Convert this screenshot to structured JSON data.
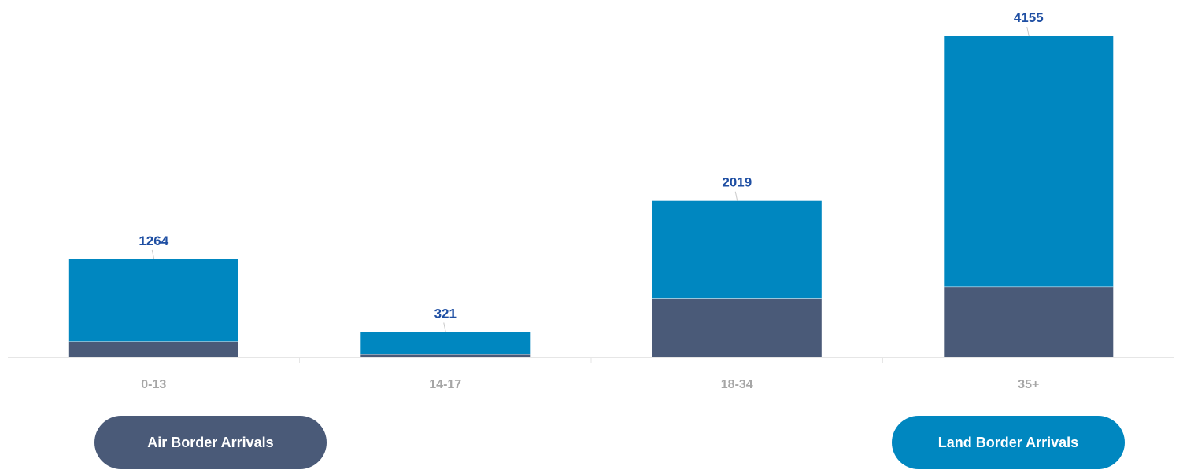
{
  "chart_data": {
    "type": "bar",
    "stacked": true,
    "title": "",
    "xlabel": "",
    "ylabel": "",
    "ylim": [
      0,
      4500
    ],
    "grid": false,
    "categories": [
      "0-13",
      "14-17",
      "18-34",
      "35+"
    ],
    "totals": [
      1264,
      321,
      2019,
      4155
    ],
    "series": [
      {
        "name": "Air Border Arrivals",
        "values": [
          200,
          30,
          760,
          910
        ],
        "color": "#4a5a78"
      },
      {
        "name": "Land Border Arrivals",
        "values": [
          1064,
          291,
          1259,
          3245
        ],
        "color": "#0087c0"
      }
    ],
    "label_color": "#1f4fa3",
    "legend_placement": "bottom"
  }
}
